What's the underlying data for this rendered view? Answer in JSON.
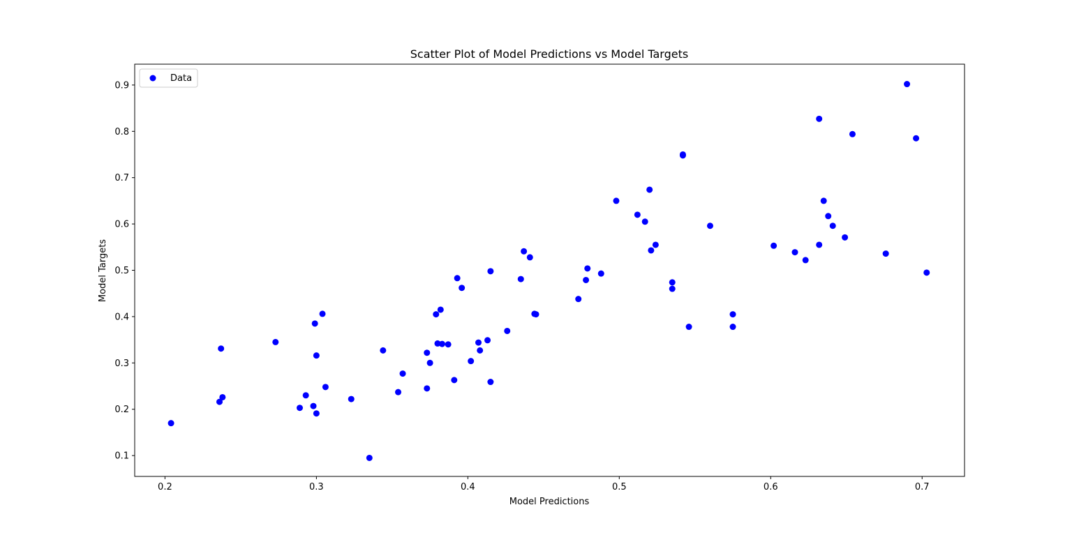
{
  "chart_data": {
    "type": "scatter",
    "title": "Scatter Plot of Model Predictions vs Model Targets",
    "xlabel": "Model Predictions",
    "ylabel": "Model Targets",
    "xlim": [
      0.18,
      0.728
    ],
    "ylim": [
      0.055,
      0.945
    ],
    "xticks": [
      "0.2",
      "0.3",
      "0.4",
      "0.5",
      "0.6",
      "0.7"
    ],
    "xtick_values": [
      0.2,
      0.3,
      0.4,
      0.5,
      0.6,
      0.7
    ],
    "yticks": [
      "0.1",
      "0.2",
      "0.3",
      "0.4",
      "0.5",
      "0.6",
      "0.7",
      "0.8",
      "0.9"
    ],
    "ytick_values": [
      0.1,
      0.2,
      0.3,
      0.4,
      0.5,
      0.6,
      0.7,
      0.8,
      0.9
    ],
    "grid": false,
    "legend_position": "top-left",
    "series": [
      {
        "name": "Data",
        "color": "#0000ff",
        "points": [
          [
            0.204,
            0.17
          ],
          [
            0.236,
            0.216
          ],
          [
            0.237,
            0.331
          ],
          [
            0.238,
            0.226
          ],
          [
            0.273,
            0.345
          ],
          [
            0.289,
            0.203
          ],
          [
            0.293,
            0.23
          ],
          [
            0.298,
            0.207
          ],
          [
            0.299,
            0.385
          ],
          [
            0.3,
            0.191
          ],
          [
            0.3,
            0.316
          ],
          [
            0.304,
            0.406
          ],
          [
            0.306,
            0.248
          ],
          [
            0.323,
            0.222
          ],
          [
            0.335,
            0.095
          ],
          [
            0.344,
            0.327
          ],
          [
            0.354,
            0.237
          ],
          [
            0.357,
            0.277
          ],
          [
            0.373,
            0.245
          ],
          [
            0.373,
            0.322
          ],
          [
            0.375,
            0.3
          ],
          [
            0.379,
            0.405
          ],
          [
            0.38,
            0.342
          ],
          [
            0.382,
            0.415
          ],
          [
            0.383,
            0.341
          ],
          [
            0.387,
            0.34
          ],
          [
            0.391,
            0.263
          ],
          [
            0.393,
            0.483
          ],
          [
            0.396,
            0.462
          ],
          [
            0.402,
            0.304
          ],
          [
            0.407,
            0.344
          ],
          [
            0.408,
            0.327
          ],
          [
            0.413,
            0.349
          ],
          [
            0.415,
            0.498
          ],
          [
            0.415,
            0.259
          ],
          [
            0.426,
            0.369
          ],
          [
            0.435,
            0.481
          ],
          [
            0.437,
            0.541
          ],
          [
            0.441,
            0.528
          ],
          [
            0.444,
            0.406
          ],
          [
            0.445,
            0.405
          ],
          [
            0.473,
            0.438
          ],
          [
            0.478,
            0.479
          ],
          [
            0.479,
            0.504
          ],
          [
            0.488,
            0.493
          ],
          [
            0.498,
            0.65
          ],
          [
            0.512,
            0.62
          ],
          [
            0.517,
            0.605
          ],
          [
            0.52,
            0.674
          ],
          [
            0.521,
            0.543
          ],
          [
            0.524,
            0.555
          ],
          [
            0.535,
            0.474
          ],
          [
            0.535,
            0.46
          ],
          [
            0.542,
            0.75
          ],
          [
            0.542,
            0.748
          ],
          [
            0.546,
            0.378
          ],
          [
            0.56,
            0.596
          ],
          [
            0.575,
            0.405
          ],
          [
            0.575,
            0.378
          ],
          [
            0.602,
            0.553
          ],
          [
            0.616,
            0.539
          ],
          [
            0.623,
            0.522
          ],
          [
            0.632,
            0.555
          ],
          [
            0.632,
            0.827
          ],
          [
            0.635,
            0.65
          ],
          [
            0.638,
            0.617
          ],
          [
            0.641,
            0.596
          ],
          [
            0.649,
            0.571
          ],
          [
            0.654,
            0.794
          ],
          [
            0.676,
            0.536
          ],
          [
            0.69,
            0.902
          ],
          [
            0.696,
            0.785
          ],
          [
            0.703,
            0.495
          ]
        ]
      }
    ]
  }
}
